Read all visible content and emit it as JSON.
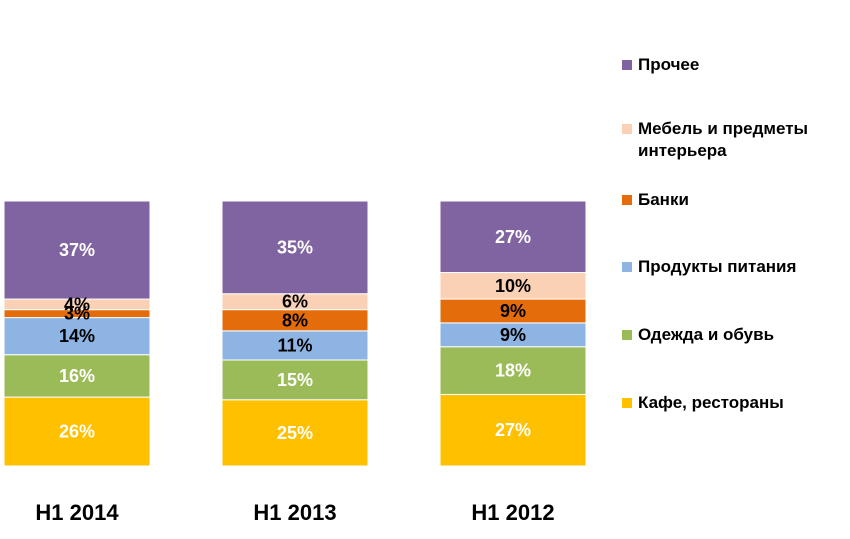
{
  "chart_data": {
    "type": "bar",
    "stacked": true,
    "percent_stacked": true,
    "categories": [
      "H1 2014",
      "H1 2013",
      "H1 2012"
    ],
    "series": [
      {
        "name": "Кафе, рестораны",
        "color": "#FFC000",
        "values": [
          26,
          25,
          27
        ],
        "labels": [
          "26%",
          "25%",
          "27%"
        ],
        "label_color": "#FFFFFF"
      },
      {
        "name": "Одежда и обувь",
        "color": "#9BBB59",
        "values": [
          16,
          15,
          18
        ],
        "labels": [
          "16%",
          "15%",
          "18%"
        ],
        "label_color": "#FFFFFF"
      },
      {
        "name": "Продукты питания",
        "color": "#8DB4E2",
        "values": [
          14,
          11,
          9
        ],
        "labels": [
          "14%",
          "11%",
          "9%"
        ],
        "label_color": "#000000"
      },
      {
        "name": "Банки",
        "color": "#E46C0A",
        "values": [
          3,
          8,
          9
        ],
        "labels": [
          "3%",
          "8%",
          "9%"
        ],
        "label_color": "#000000"
      },
      {
        "name": "Мебель и предметы интерьера",
        "color": "#FAD1B4",
        "values": [
          4,
          6,
          10
        ],
        "labels": [
          "4%",
          "6%",
          "10%"
        ],
        "label_color": "#000000"
      },
      {
        "name": "Прочее",
        "color": "#8064A2",
        "values": [
          37,
          35,
          27
        ],
        "labels": [
          "37%",
          "35%",
          "27%"
        ],
        "label_color": "#FFFFFF"
      }
    ],
    "legend": {
      "position": "right",
      "order": [
        {
          "name": "Прочее",
          "lines": [
            "Прочее"
          ],
          "color": "#8064A2"
        },
        {
          "name": "Мебель и предметы интерьера",
          "lines": [
            "Мебель и предметы",
            "интерьера"
          ],
          "color": "#FAD1B4"
        },
        {
          "name": "Банки",
          "lines": [
            "Банки"
          ],
          "color": "#E46C0A"
        },
        {
          "name": "Продукты питания",
          "lines": [
            "Продукты питания"
          ],
          "color": "#8DB4E2"
        },
        {
          "name": "Одежда и обувь",
          "lines": [
            "Одежда и обувь"
          ],
          "color": "#9BBB59"
        },
        {
          "name": "Кафе, рестораны",
          "lines": [
            "Кафе, рестораны"
          ],
          "color": "#FFC000"
        }
      ]
    },
    "title": "",
    "xlabel": "",
    "ylabel": "",
    "grid": false,
    "ylim": [
      0,
      100
    ],
    "top_clipped": true
  }
}
